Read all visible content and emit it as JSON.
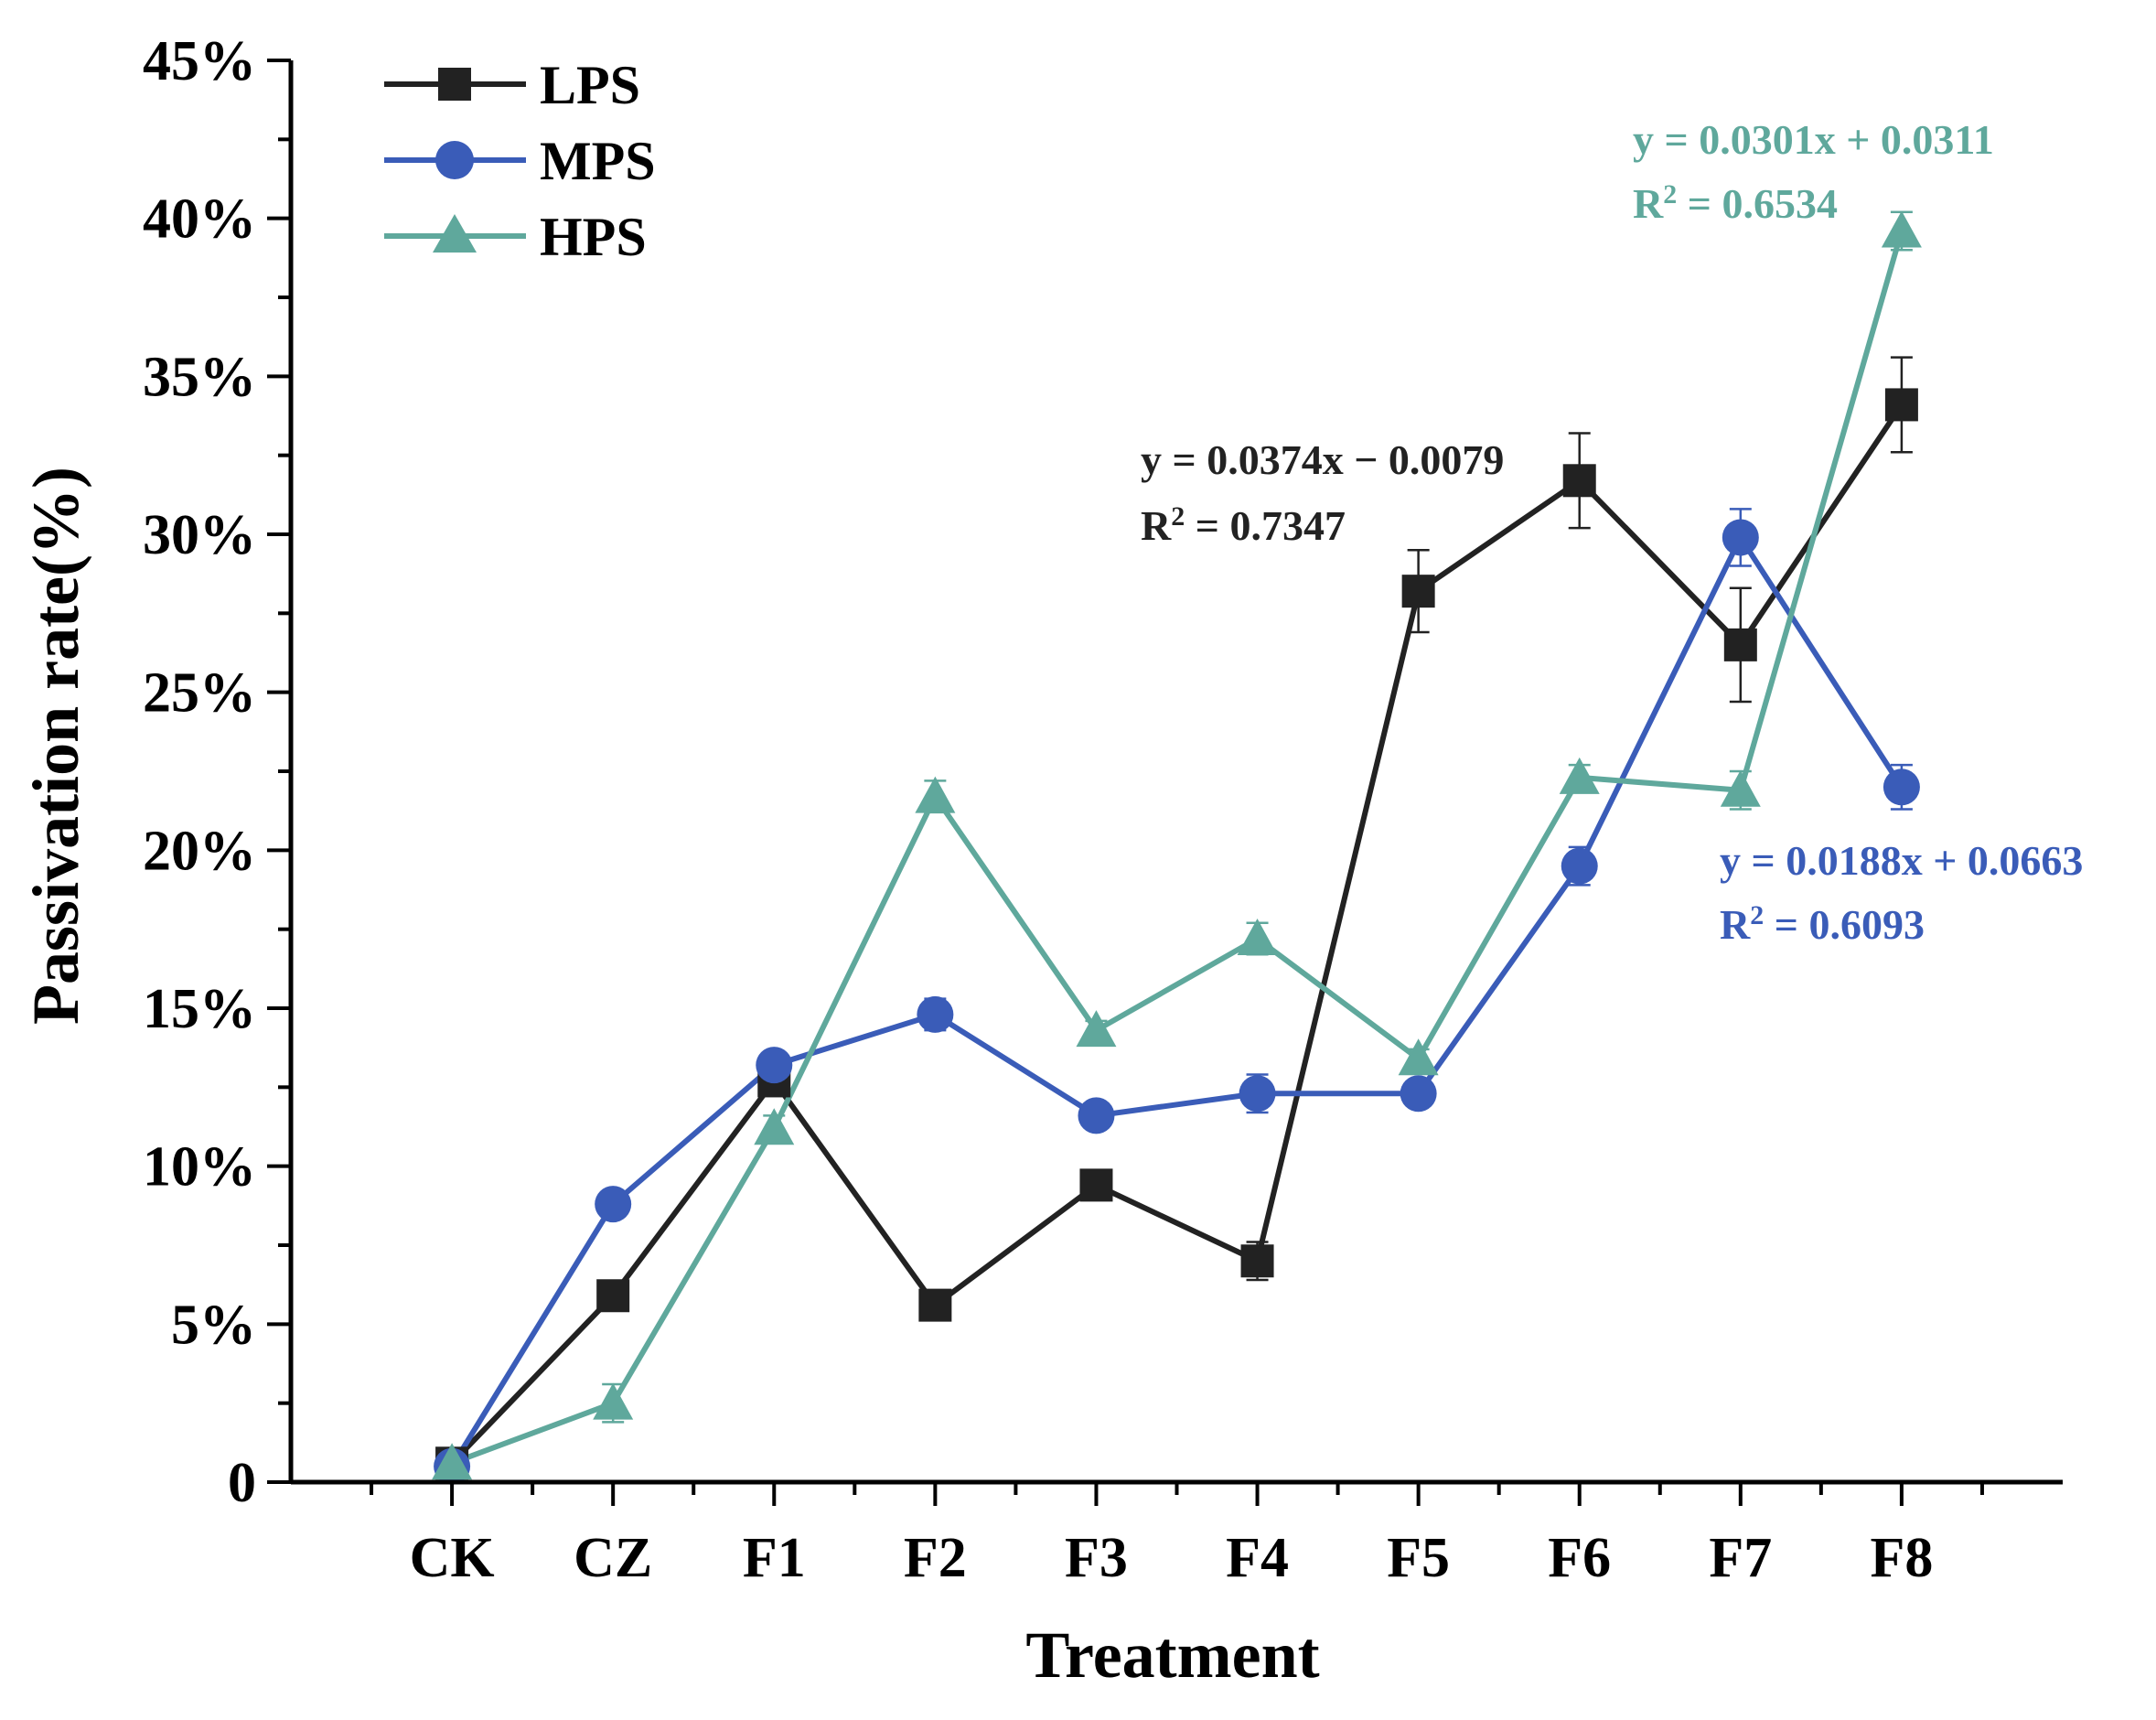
{
  "chart_data": {
    "type": "line",
    "xlabel": "Treatment",
    "ylabel": "Passivation rate(%)",
    "categories": [
      "CK",
      "CZ",
      "F1",
      "F2",
      "F3",
      "F4",
      "F5",
      "F6",
      "F7",
      "F8"
    ],
    "ylim": [
      0,
      45
    ],
    "yticks": [
      0,
      5,
      10,
      15,
      20,
      25,
      30,
      35,
      40,
      45
    ],
    "ytick_labels": [
      "0",
      "5%",
      "10%",
      "15%",
      "20%",
      "25%",
      "30%",
      "35%",
      "40%",
      "45%"
    ],
    "legend_position": "top-left",
    "series": [
      {
        "name": "LPS",
        "color": "#222222",
        "marker": "square",
        "values": [
          0.6,
          5.9,
          12.7,
          5.6,
          9.4,
          7.0,
          28.2,
          31.7,
          26.5,
          34.1
        ],
        "errors": [
          0.2,
          0.3,
          0.4,
          0.3,
          0.3,
          0.6,
          1.3,
          1.5,
          1.8,
          1.5
        ],
        "equation": "y = 0.0374x − 0.0079",
        "r2_label": "R",
        "r2_value": " = 0.7347"
      },
      {
        "name": "MPS",
        "color": "#3a5cb8",
        "marker": "circle",
        "values": [
          0.5,
          8.8,
          13.2,
          14.8,
          11.6,
          12.3,
          12.3,
          19.5,
          29.9,
          22.0
        ],
        "errors": [
          0.2,
          0.3,
          0.3,
          0.5,
          0.3,
          0.6,
          0.3,
          0.6,
          0.9,
          0.7
        ],
        "equation": "y = 0.0188x + 0.0663",
        "r2_label": "R",
        "r2_value": " = 0.6093"
      },
      {
        "name": "HPS",
        "color": "#5fa89c",
        "marker": "triangle",
        "values": [
          0.6,
          2.5,
          11.2,
          21.7,
          14.3,
          17.2,
          13.4,
          22.3,
          21.9,
          39.6
        ],
        "errors": [
          0.2,
          0.6,
          0.4,
          0.5,
          0.3,
          0.5,
          0.3,
          0.4,
          0.6,
          0.6
        ],
        "equation": "y = 0.0301x + 0.0311",
        "r2_label": "R",
        "r2_value": " = 0.6534"
      }
    ]
  }
}
